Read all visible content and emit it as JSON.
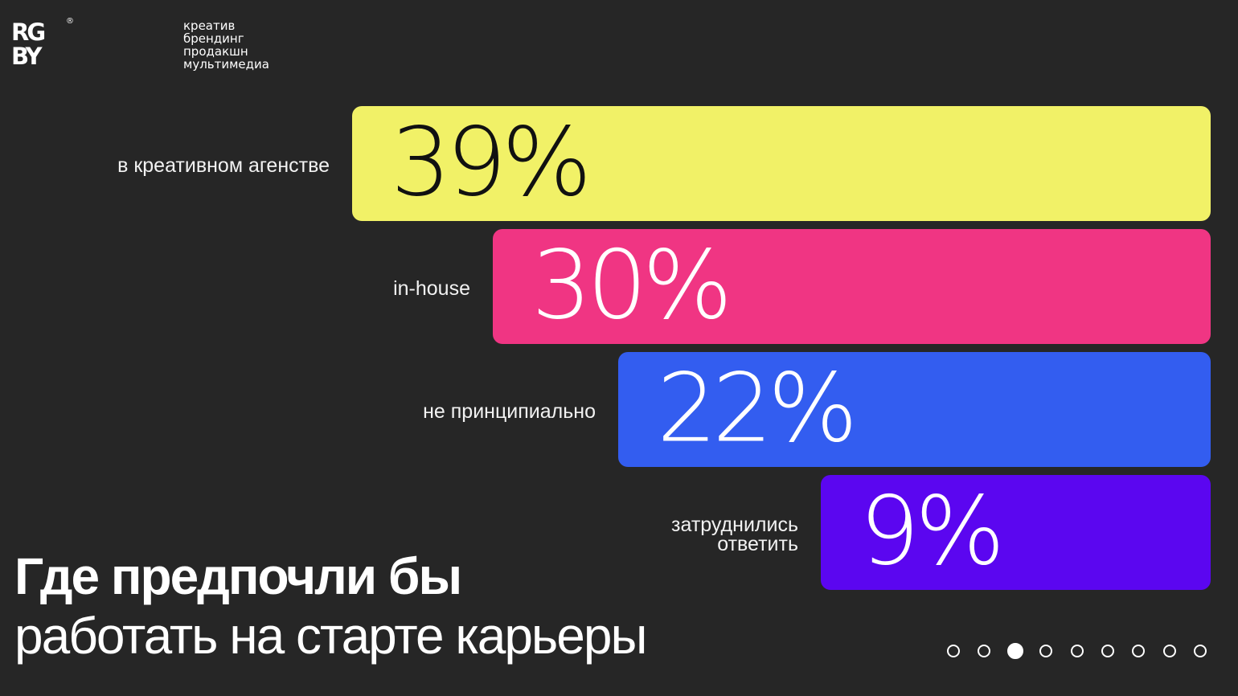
{
  "brand": {
    "logo_line1": "RG",
    "logo_line2": "BY",
    "registered": "®",
    "tagline": [
      "креатив",
      "брендинг",
      "продакшн",
      "мультимедиа"
    ]
  },
  "title": {
    "line1": "Где предпочли бы",
    "line2": "работать на старте карьеры"
  },
  "chart_data": {
    "type": "bar",
    "orientation": "horizontal",
    "categories": [
      [
        "в креативном агенстве"
      ],
      [
        "in-house"
      ],
      [
        "не принципиально"
      ],
      [
        "затруднились",
        "ответить"
      ]
    ],
    "values": [
      39,
      30,
      22,
      9
    ],
    "value_labels": [
      "39%",
      "30%",
      "22%",
      "9%"
    ],
    "unit": "%",
    "colors": [
      "#f1f167",
      "#f03583",
      "#335df0",
      "#5b06f0"
    ],
    "value_text_colors": [
      "#111111",
      "#ffffff",
      "#ffffff",
      "#ffffff"
    ],
    "bar_alignment": "right"
  },
  "pager": {
    "count": 9,
    "active_index": 2
  },
  "colors": {
    "background": "#262626",
    "text": "#ffffff"
  }
}
